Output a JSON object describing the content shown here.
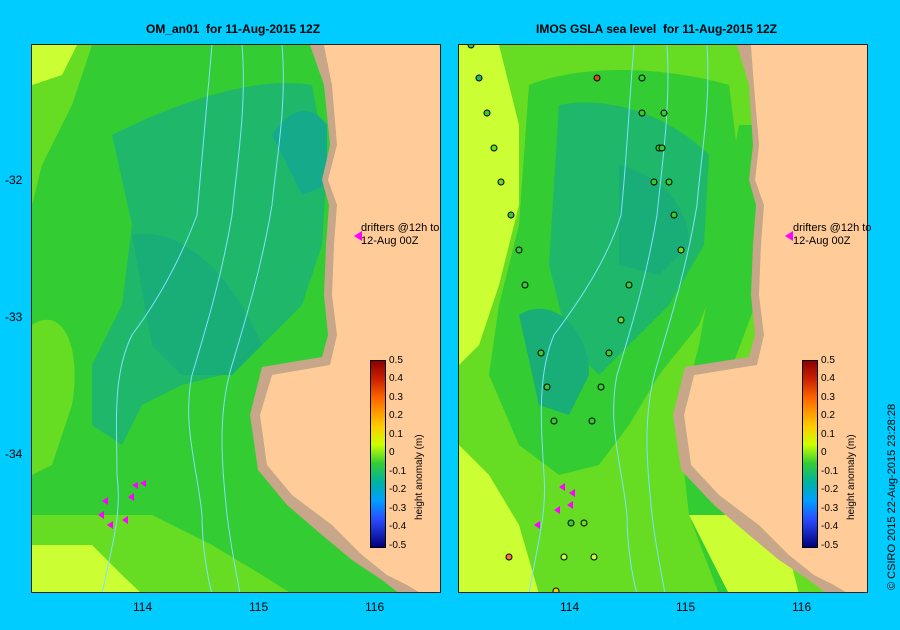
{
  "left_panel": {
    "title": "OM_an01  for 11-Aug-2015 12Z",
    "drifter_note": "drifters @12h to\n12-Aug 00Z"
  },
  "right_panel": {
    "title": "IMOS GSLA sea level  for 11-Aug-2015 12Z",
    "drifter_note": "drifters @12h to\n12-Aug 00Z"
  },
  "axes": {
    "lon_ticks": [
      "114",
      "115",
      "116"
    ],
    "lat_ticks": [
      "-32",
      "-33",
      "-34"
    ]
  },
  "colorbar": {
    "title": "height anomaly (m)",
    "labels": [
      "0.5",
      "0.4",
      "0.3",
      "0.2",
      "0.1",
      "0",
      "-0.1",
      "-0.2",
      "-0.3",
      "-0.4",
      "-0.5"
    ]
  },
  "copyright": "© CSIRO 2015   22-Aug-2015 23:28:28",
  "colors": {
    "background": "#00ccff",
    "land": "#ffcc99",
    "shelf": "#c8a68a",
    "drifter": "#ff00ff",
    "bathymetry_line": "#7fe0ff"
  }
}
